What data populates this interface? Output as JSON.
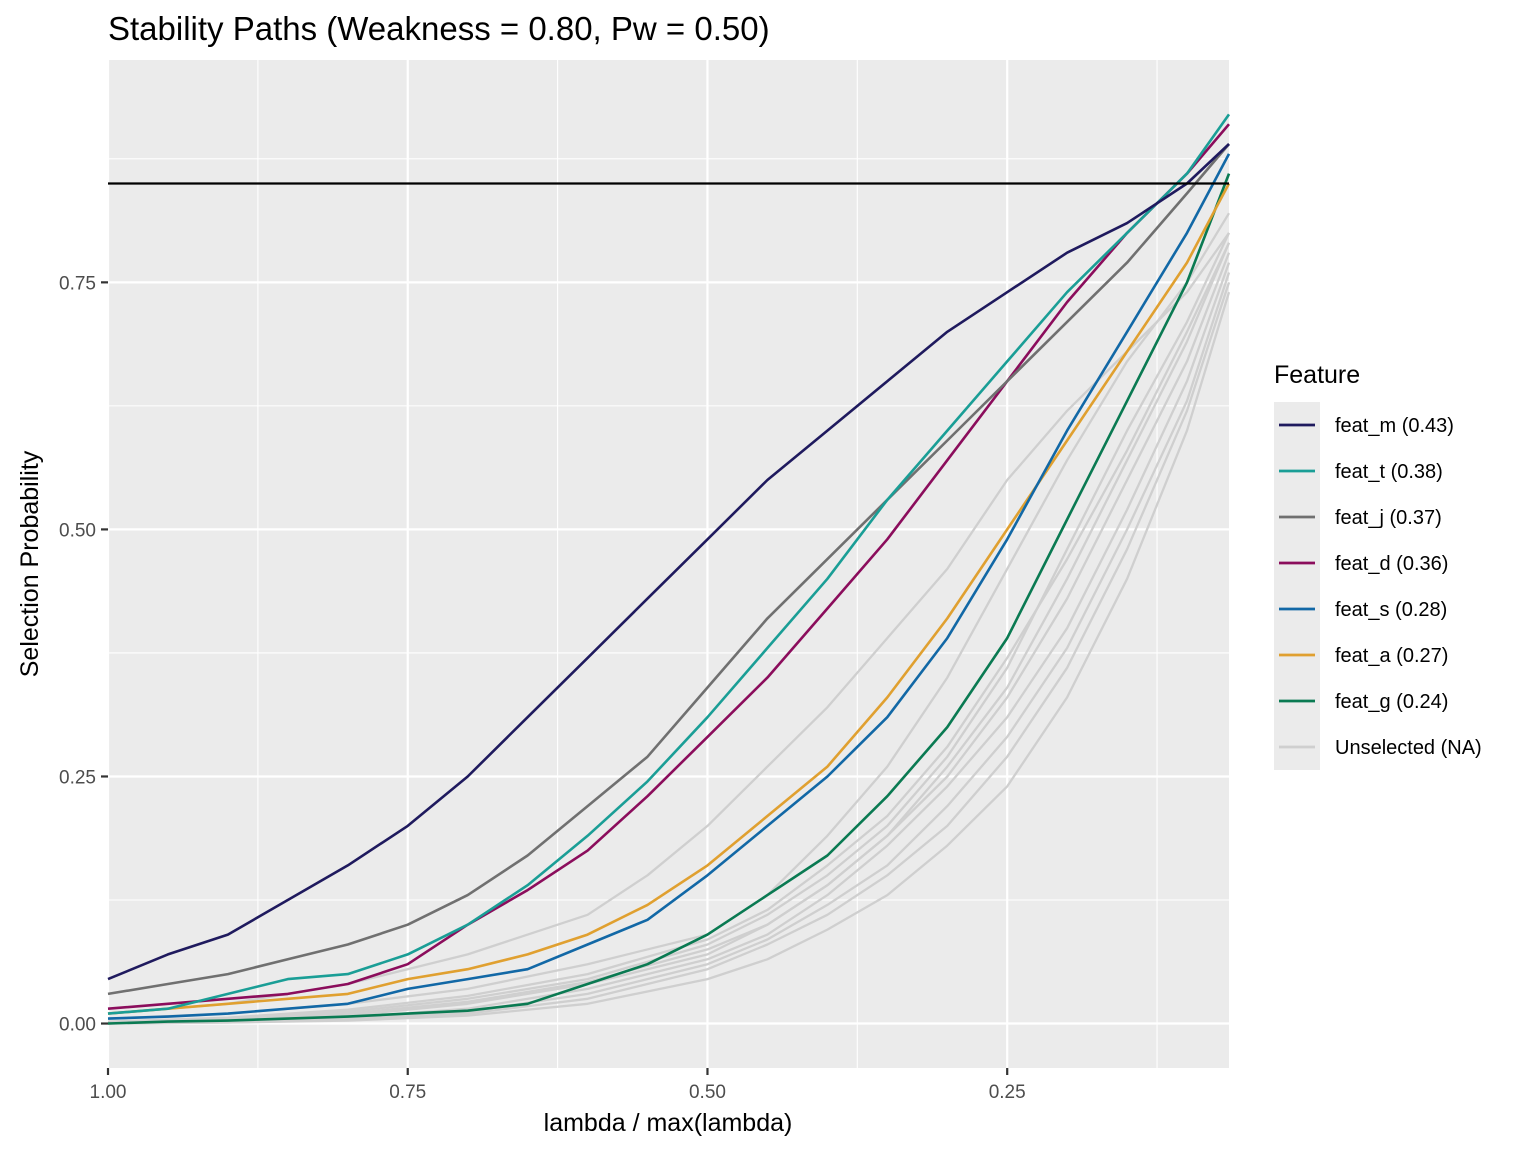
{
  "chart_data": {
    "type": "line",
    "title": "Stability Paths (Weakness = 0.80, Pw = 0.50)",
    "xlabel": "lambda / max(lambda)",
    "ylabel": "Selection Probability",
    "xlim": [
      1.0,
      0.065
    ],
    "x_reversed": true,
    "ylim": [
      -0.045,
      0.975
    ],
    "x_ticks": [
      {
        "value": 1.0,
        "label": "1.00"
      },
      {
        "value": 0.75,
        "label": "0.75"
      },
      {
        "value": 0.5,
        "label": "0.50"
      },
      {
        "value": 0.25,
        "label": "0.25"
      }
    ],
    "y_ticks": [
      {
        "value": 0.0,
        "label": "0.00"
      },
      {
        "value": 0.25,
        "label": "0.25"
      },
      {
        "value": 0.5,
        "label": "0.50"
      },
      {
        "value": 0.75,
        "label": "0.75"
      }
    ],
    "threshold": 0.85,
    "grid": true,
    "legend": {
      "title": "Feature",
      "position": "right"
    },
    "series": [
      {
        "name": "feat_m (0.43)",
        "color": "#1f1a5e",
        "x": [
          1.0,
          0.95,
          0.9,
          0.85,
          0.8,
          0.75,
          0.7,
          0.65,
          0.6,
          0.55,
          0.5,
          0.45,
          0.4,
          0.35,
          0.3,
          0.25,
          0.2,
          0.15,
          0.1,
          0.065
        ],
        "values": [
          0.045,
          0.07,
          0.09,
          0.125,
          0.16,
          0.2,
          0.25,
          0.31,
          0.37,
          0.43,
          0.49,
          0.55,
          0.6,
          0.65,
          0.7,
          0.74,
          0.78,
          0.81,
          0.85,
          0.89
        ]
      },
      {
        "name": "feat_t (0.38)",
        "color": "#1a9e96",
        "x": [
          1.0,
          0.95,
          0.9,
          0.85,
          0.8,
          0.75,
          0.7,
          0.65,
          0.6,
          0.55,
          0.5,
          0.45,
          0.4,
          0.35,
          0.3,
          0.25,
          0.2,
          0.15,
          0.1,
          0.065
        ],
        "values": [
          0.01,
          0.015,
          0.03,
          0.045,
          0.05,
          0.07,
          0.1,
          0.14,
          0.19,
          0.245,
          0.31,
          0.38,
          0.45,
          0.53,
          0.6,
          0.67,
          0.74,
          0.8,
          0.86,
          0.92
        ]
      },
      {
        "name": "feat_j (0.37)",
        "color": "#707070",
        "x": [
          1.0,
          0.95,
          0.9,
          0.85,
          0.8,
          0.75,
          0.7,
          0.65,
          0.6,
          0.55,
          0.5,
          0.45,
          0.4,
          0.35,
          0.3,
          0.25,
          0.2,
          0.15,
          0.1,
          0.065
        ],
        "values": [
          0.03,
          0.04,
          0.05,
          0.065,
          0.08,
          0.1,
          0.13,
          0.17,
          0.22,
          0.27,
          0.34,
          0.41,
          0.47,
          0.53,
          0.59,
          0.65,
          0.71,
          0.77,
          0.84,
          0.89
        ]
      },
      {
        "name": "feat_d (0.36)",
        "color": "#8b0d5c",
        "x": [
          1.0,
          0.95,
          0.9,
          0.85,
          0.8,
          0.75,
          0.7,
          0.65,
          0.6,
          0.55,
          0.5,
          0.45,
          0.4,
          0.35,
          0.3,
          0.25,
          0.2,
          0.15,
          0.1,
          0.065
        ],
        "values": [
          0.015,
          0.02,
          0.025,
          0.03,
          0.04,
          0.06,
          0.1,
          0.135,
          0.175,
          0.23,
          0.29,
          0.35,
          0.42,
          0.49,
          0.57,
          0.65,
          0.73,
          0.8,
          0.86,
          0.91
        ]
      },
      {
        "name": "feat_s (0.28)",
        "color": "#1268a6",
        "x": [
          1.0,
          0.95,
          0.9,
          0.85,
          0.8,
          0.75,
          0.7,
          0.65,
          0.6,
          0.55,
          0.5,
          0.45,
          0.4,
          0.35,
          0.3,
          0.25,
          0.2,
          0.15,
          0.1,
          0.065
        ],
        "values": [
          0.005,
          0.007,
          0.01,
          0.015,
          0.02,
          0.035,
          0.045,
          0.055,
          0.08,
          0.105,
          0.15,
          0.2,
          0.25,
          0.31,
          0.39,
          0.49,
          0.6,
          0.7,
          0.8,
          0.88
        ]
      },
      {
        "name": "feat_a (0.27)",
        "color": "#e0a030",
        "x": [
          1.0,
          0.95,
          0.9,
          0.85,
          0.8,
          0.75,
          0.7,
          0.65,
          0.6,
          0.55,
          0.5,
          0.45,
          0.4,
          0.35,
          0.3,
          0.25,
          0.2,
          0.15,
          0.1,
          0.065
        ],
        "values": [
          0.01,
          0.015,
          0.02,
          0.025,
          0.03,
          0.045,
          0.055,
          0.07,
          0.09,
          0.12,
          0.16,
          0.21,
          0.26,
          0.33,
          0.41,
          0.5,
          0.59,
          0.68,
          0.77,
          0.85
        ]
      },
      {
        "name": "feat_g (0.24)",
        "color": "#0a7a52",
        "x": [
          1.0,
          0.95,
          0.9,
          0.85,
          0.8,
          0.75,
          0.7,
          0.65,
          0.6,
          0.55,
          0.5,
          0.45,
          0.4,
          0.35,
          0.3,
          0.25,
          0.2,
          0.15,
          0.1,
          0.065
        ],
        "values": [
          0.0,
          0.002,
          0.003,
          0.005,
          0.007,
          0.01,
          0.013,
          0.02,
          0.04,
          0.06,
          0.09,
          0.13,
          0.17,
          0.23,
          0.3,
          0.39,
          0.51,
          0.63,
          0.75,
          0.86
        ]
      },
      {
        "name": "Unselected (NA)",
        "color": "#cfcfcf",
        "lines": [
          {
            "x": [
              1.0,
              0.9,
              0.8,
              0.7,
              0.6,
              0.55,
              0.5,
              0.45,
              0.4,
              0.35,
              0.3,
              0.25,
              0.2,
              0.15,
              0.1,
              0.065
            ],
            "values": [
              0.01,
              0.02,
              0.04,
              0.07,
              0.11,
              0.15,
              0.2,
              0.26,
              0.32,
              0.39,
              0.46,
              0.55,
              0.62,
              0.68,
              0.74,
              0.8
            ]
          },
          {
            "x": [
              1.0,
              0.9,
              0.8,
              0.7,
              0.6,
              0.5,
              0.45,
              0.4,
              0.35,
              0.3,
              0.25,
              0.2,
              0.15,
              0.1,
              0.065
            ],
            "values": [
              0.005,
              0.01,
              0.02,
              0.035,
              0.06,
              0.09,
              0.13,
              0.19,
              0.26,
              0.35,
              0.46,
              0.57,
              0.67,
              0.75,
              0.82
            ]
          },
          {
            "x": [
              1.0,
              0.9,
              0.8,
              0.7,
              0.6,
              0.5,
              0.45,
              0.4,
              0.35,
              0.3,
              0.25,
              0.2,
              0.15,
              0.1,
              0.065
            ],
            "values": [
              0.0,
              0.005,
              0.012,
              0.025,
              0.045,
              0.08,
              0.11,
              0.15,
              0.2,
              0.27,
              0.36,
              0.48,
              0.6,
              0.71,
              0.8
            ]
          },
          {
            "x": [
              1.0,
              0.9,
              0.8,
              0.7,
              0.6,
              0.5,
              0.45,
              0.4,
              0.35,
              0.3,
              0.25,
              0.2,
              0.15,
              0.1,
              0.065
            ],
            "values": [
              0.0,
              0.003,
              0.008,
              0.02,
              0.04,
              0.07,
              0.1,
              0.14,
              0.19,
              0.25,
              0.33,
              0.43,
              0.55,
              0.67,
              0.78
            ]
          },
          {
            "x": [
              1.0,
              0.9,
              0.8,
              0.7,
              0.6,
              0.5,
              0.45,
              0.4,
              0.35,
              0.3,
              0.25,
              0.2,
              0.15,
              0.1,
              0.065
            ],
            "values": [
              0.0,
              0.002,
              0.006,
              0.015,
              0.035,
              0.065,
              0.09,
              0.13,
              0.18,
              0.24,
              0.31,
              0.4,
              0.52,
              0.65,
              0.77
            ]
          },
          {
            "x": [
              1.0,
              0.9,
              0.8,
              0.7,
              0.6,
              0.5,
              0.45,
              0.4,
              0.35,
              0.3,
              0.25,
              0.2,
              0.15,
              0.1,
              0.065
            ],
            "values": [
              0.0,
              0.002,
              0.005,
              0.012,
              0.03,
              0.06,
              0.085,
              0.12,
              0.16,
              0.22,
              0.29,
              0.38,
              0.5,
              0.63,
              0.76
            ]
          },
          {
            "x": [
              1.0,
              0.9,
              0.8,
              0.7,
              0.6,
              0.5,
              0.45,
              0.4,
              0.35,
              0.3,
              0.25,
              0.2,
              0.15,
              0.1,
              0.065
            ],
            "values": [
              0.0,
              0.001,
              0.004,
              0.01,
              0.025,
              0.055,
              0.08,
              0.11,
              0.15,
              0.2,
              0.27,
              0.36,
              0.48,
              0.62,
              0.75
            ]
          },
          {
            "x": [
              1.0,
              0.9,
              0.8,
              0.7,
              0.6,
              0.5,
              0.45,
              0.4,
              0.35,
              0.3,
              0.25,
              0.2,
              0.15,
              0.1,
              0.065
            ],
            "values": [
              0.0,
              0.004,
              0.01,
              0.022,
              0.042,
              0.075,
              0.1,
              0.14,
              0.19,
              0.26,
              0.34,
              0.45,
              0.57,
              0.69,
              0.79
            ]
          },
          {
            "x": [
              1.0,
              0.9,
              0.8,
              0.7,
              0.6,
              0.5,
              0.45,
              0.4,
              0.35,
              0.3,
              0.25,
              0.2,
              0.15,
              0.1,
              0.065
            ],
            "values": [
              0.0,
              0.001,
              0.003,
              0.008,
              0.02,
              0.045,
              0.065,
              0.095,
              0.13,
              0.18,
              0.24,
              0.33,
              0.45,
              0.6,
              0.74
            ]
          },
          {
            "x": [
              1.0,
              0.9,
              0.8,
              0.7,
              0.6,
              0.5,
              0.45,
              0.4,
              0.35,
              0.3,
              0.25,
              0.2,
              0.15,
              0.1,
              0.065
            ],
            "values": [
              0.002,
              0.006,
              0.014,
              0.028,
              0.05,
              0.085,
              0.115,
              0.16,
              0.21,
              0.28,
              0.37,
              0.47,
              0.58,
              0.7,
              0.79
            ]
          }
        ]
      }
    ]
  }
}
